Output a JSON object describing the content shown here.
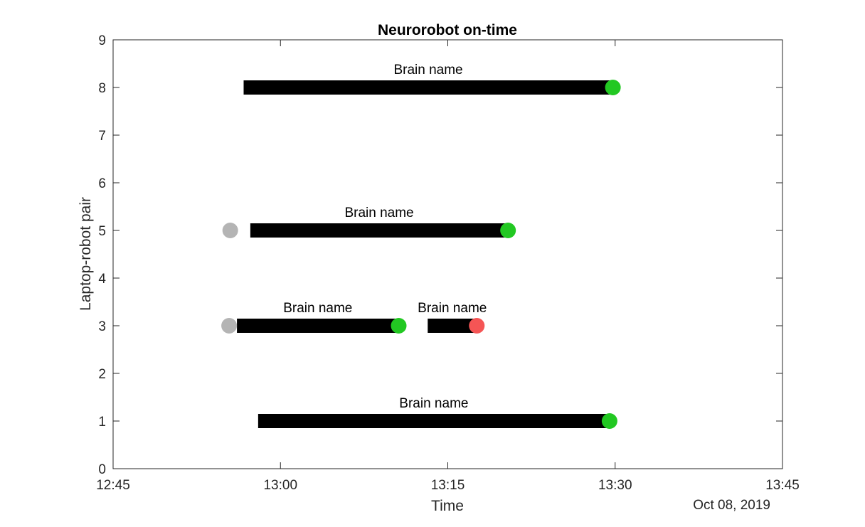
{
  "chart_data": {
    "type": "timeline",
    "title": "Neurorobot on-time",
    "xlabel": "Time",
    "ylabel": "Laptop-robot pair",
    "date_label": "Oct 08, 2019",
    "xlim": [
      "12:45",
      "13:45"
    ],
    "ylim": [
      0,
      9
    ],
    "xticks": [
      "12:45",
      "13:00",
      "13:15",
      "13:30",
      "13:45"
    ],
    "yticks": [
      "0",
      "1",
      "2",
      "3",
      "4",
      "5",
      "6",
      "7",
      "8",
      "9"
    ],
    "grid": false,
    "colors": {
      "bar": "#000000",
      "ok": "#22c822",
      "error": "#f55555",
      "idle": "#b4b4b4"
    },
    "sessions": [
      {
        "pair": 8,
        "start": "12:56.7",
        "end": "13:29.8",
        "label": "Brain name",
        "end_status": "ok"
      },
      {
        "pair": 5,
        "start": "12:57.3",
        "end": "13:20.4",
        "label": "Brain name",
        "end_status": "ok"
      },
      {
        "pair": 3,
        "start": "12:56.1",
        "end": "13:10.6",
        "label": "Brain name",
        "end_status": "ok"
      },
      {
        "pair": 3,
        "start": "13:13.2",
        "end": "13:17.6",
        "label": "Brain name",
        "end_status": "error"
      },
      {
        "pair": 1,
        "start": "12:58.0",
        "end": "13:29.5",
        "label": "Brain name",
        "end_status": "ok"
      }
    ],
    "idle_markers": [
      {
        "pair": 5,
        "time": "12:55.5"
      },
      {
        "pair": 3,
        "time": "12:55.4"
      }
    ]
  }
}
